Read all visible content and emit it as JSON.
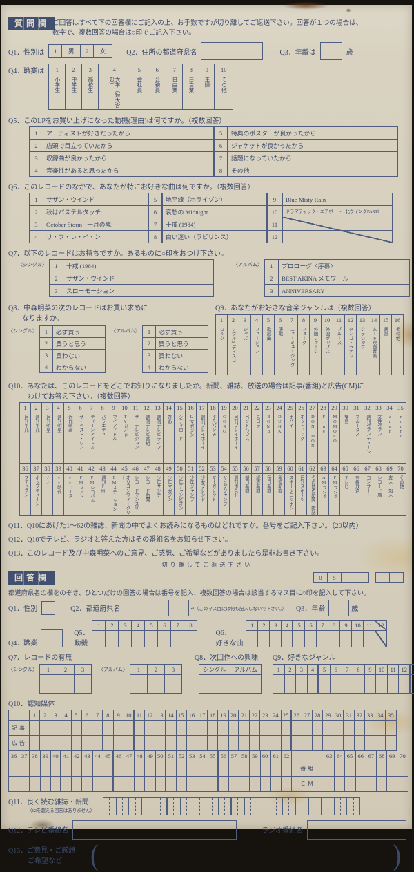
{
  "question": {
    "badge": "質問欄",
    "intro1": "ご回答はすべて下の回答欄にご記入の上、お手数ですが切り離してご返送下さい。回答が１つの場合は、",
    "intro2": "数字で、複数回答の場合は○印でご記入下さい。",
    "q1": {
      "label": "Q1．性別は",
      "cells": [
        "1",
        "男",
        "2",
        "女"
      ]
    },
    "q2": {
      "label": "Q2．住所の都道府県名"
    },
    "q3": {
      "label": "Q3．年齢は",
      "unit": "歳"
    },
    "q4": {
      "label": "Q4．職業は",
      "occupations": [
        "小学生",
        "中学生",
        "高校生",
        "大学（短大含む）",
        "会社員",
        "公務員",
        "自由業",
        "自営業",
        "主婦",
        "その他"
      ]
    },
    "q5": {
      "label": "Q5．このLPをお買い上げになった動機(理由)は何ですか。（複数回答）",
      "items": [
        "アーティストが好きだったから",
        "店頭で目立っていたから",
        "収録曲が良かったから",
        "音楽性があると思ったから",
        "特典のポスターが良かったから",
        "ジャケットが良かったから",
        "話題になっていたから",
        "その他"
      ]
    },
    "q6": {
      "label": "Q6．このレコードのなかで、あなたが特にお好きな曲は何ですか。（複数回答）",
      "items": [
        "サザン・ウインド",
        "秋はパステルタッチ",
        "October Storm −十月の嵐−",
        "リ・フ・レ・イ・ン",
        "地平線（ホライゾン）",
        "哀愁の Midnight",
        "十戒 (1984)",
        "白い迷い（ラビリンス）",
        "Blue Misty Rain",
        "ドラマティック・エアポート −北ウイングPARTⅡ−",
        "",
        ""
      ]
    },
    "q7": {
      "label": "Q7．以下のレコードはお持ちですか。あるものに○印をおつけ下さい。",
      "single_tag": "〈シングル〉",
      "album_tag": "〈アルバム〉",
      "singles": [
        "十戒 (1984)",
        "サザン・ウインド",
        "スローモーション"
      ],
      "albums": [
        "プロローグ〈序幕〉",
        "BEST AKINA メモワール",
        "ANNIVERSARY"
      ]
    },
    "q8": {
      "label1": "Q8．中森明菜の次のレコードはお買い求めに",
      "label2": "なりますか。",
      "single_tag": "〈シングル〉",
      "album_tag": "〈アルバム〉",
      "options": [
        "必ず買う",
        "買うと思う",
        "買わない",
        "わからない"
      ]
    },
    "q9": {
      "label": "Q9．あなたがお好きな音楽ジャンルは（複数回答）",
      "genres": [
        "ロック",
        "ソウル&ディスコ",
        "ジャズ",
        "フュージョン",
        "歌謡曲",
        "演歌",
        "ニューミュージック",
        "フォーク",
        "外国フォーク",
        "外国ポップス",
        "ブルース",
        "タンゴ・ラテン",
        "クラシック",
        "ムード映画音楽",
        "民謡",
        "その他"
      ]
    },
    "q10": {
      "label1": "Q10．あなたは、このレコードをどこでお知りになりましたか。新聞、雑誌、放送の場合は記事(番組)と広告(CM)に",
      "label2": "わけてお答え下さい。（複数回答）",
      "media_1_35": [
        "月刊平凡",
        "週刊平凡",
        "月刊明星",
        "週刊明星",
        "近代映画",
        "ザ・ベスト・ワン",
        "ティーンアイドル",
        "バラエティ",
        "マイアイドル",
        "TVガイド",
        "ザ・テレビジョン",
        "週刊テレビ番組",
        "週刊テレビライフ",
        "ぴあ",
        "シティロード",
        "Lマガジン",
        "週刊プレイボーイ",
        "平凡パンチ",
        "GORO",
        "月刊プレイボーイ",
        "ペントハウス",
        "スコラ",
        "BOMB",
        "DUNK",
        "ポパイ",
        "ホットドッグ",
        "DON DON",
        "Fine",
        "MOMOCO",
        "宝島",
        "ブルータス",
        "週刊セブンティーン",
        "女性セブン",
        "anan",
        "nonno"
      ],
      "media_36_70": [
        "プチセブン",
        "ポップティーン",
        "JJ",
        "○○時代",
        "○○コース",
        "FMファン",
        "FMレコパル",
        "週刊FM",
        "FMステーション",
        "オリコンウィークリー",
        "レコードマンスリー",
        "レコード新聞",
        "少年サンデー",
        "少年マガジン",
        "少年チャンピオン",
        "少年ジャンプ",
        "少女フレンド",
        "マーガレット",
        "ヤングジャンプ",
        "週刊ポスト",
        "朝日新聞",
        "読売新聞",
        "毎日新聞",
        "報知新聞",
        "スポーツニッポン",
        "日刊スポーツ",
        "その他の新聞、雑誌",
        "AMラジオ",
        "FMラジオ",
        "テレビ",
        "有線放送",
        "コンサート",
        "レコード店",
        "友人・知人",
        "その他"
      ]
    },
    "q11": {
      "label": "Q11．Q10にあげた1〜62の雑誌、新聞の中でよくお読みになるものはどれですか。番号をご記入下さい。（20以内）"
    },
    "q12": {
      "label": "Q12．Q10でテレビ、ラジオと答えた方はその番組名をお知らせ下さい。"
    },
    "q13": {
      "label": "Q13．このレコード及び中森明菜へのご意見、ご感想、ご希望などがありましたら是非お書き下さい。"
    }
  },
  "cutline": "切り離してご返送下さい",
  "answer": {
    "badge": "回答欄",
    "serial1": [
      "0",
      "5",
      "",
      ""
    ],
    "serial2": [
      "",
      ""
    ],
    "intro": "都道府県名の欄をのぞき、ひとつだけの回答の場合は番号を記入、複数回答の場合は該当するマス目に○印を記入して下さい。",
    "q1_label": "Q1．性別",
    "q2_label": "Q2．都道府県名",
    "q2_note": "（このマス目には何も記入しないで下さい。）",
    "q2_arrow": "↵",
    "q3_label": "Q3．年齢",
    "q3_unit": "歳",
    "q4_label": "Q4．職業",
    "q5_label1": "Q5．",
    "q5_label2": "動機",
    "q6_label1": "Q6．",
    "q6_label2": "好きな曲",
    "q7_label": "Q7．レコードの有無",
    "q7_single_tag": "〈シングル〉",
    "q7_album_tag": "〈アルバム〉",
    "q8_label": "Q8．次回作への興味",
    "q8_cols": [
      "シングル",
      "アルバム"
    ],
    "q9_label": "Q9．好きなジャンル",
    "q10_label": "Q10．認知媒体",
    "q10_row1": "記事",
    "q10_row2": "広告",
    "q10_prog": "番組",
    "q10_cm": "ＣＭ",
    "q11_label": "Q11．良く読む雑誌・新聞",
    "q11_note": "（62を超える回答はありません）",
    "q11_pairs": 20,
    "q12_tv": "Q12．テレビ番組名",
    "q12_radio": "ラジオ番組名",
    "q13_label1": "Q13．ご意見・ご感想",
    "q13_label2": "ご希望など"
  }
}
